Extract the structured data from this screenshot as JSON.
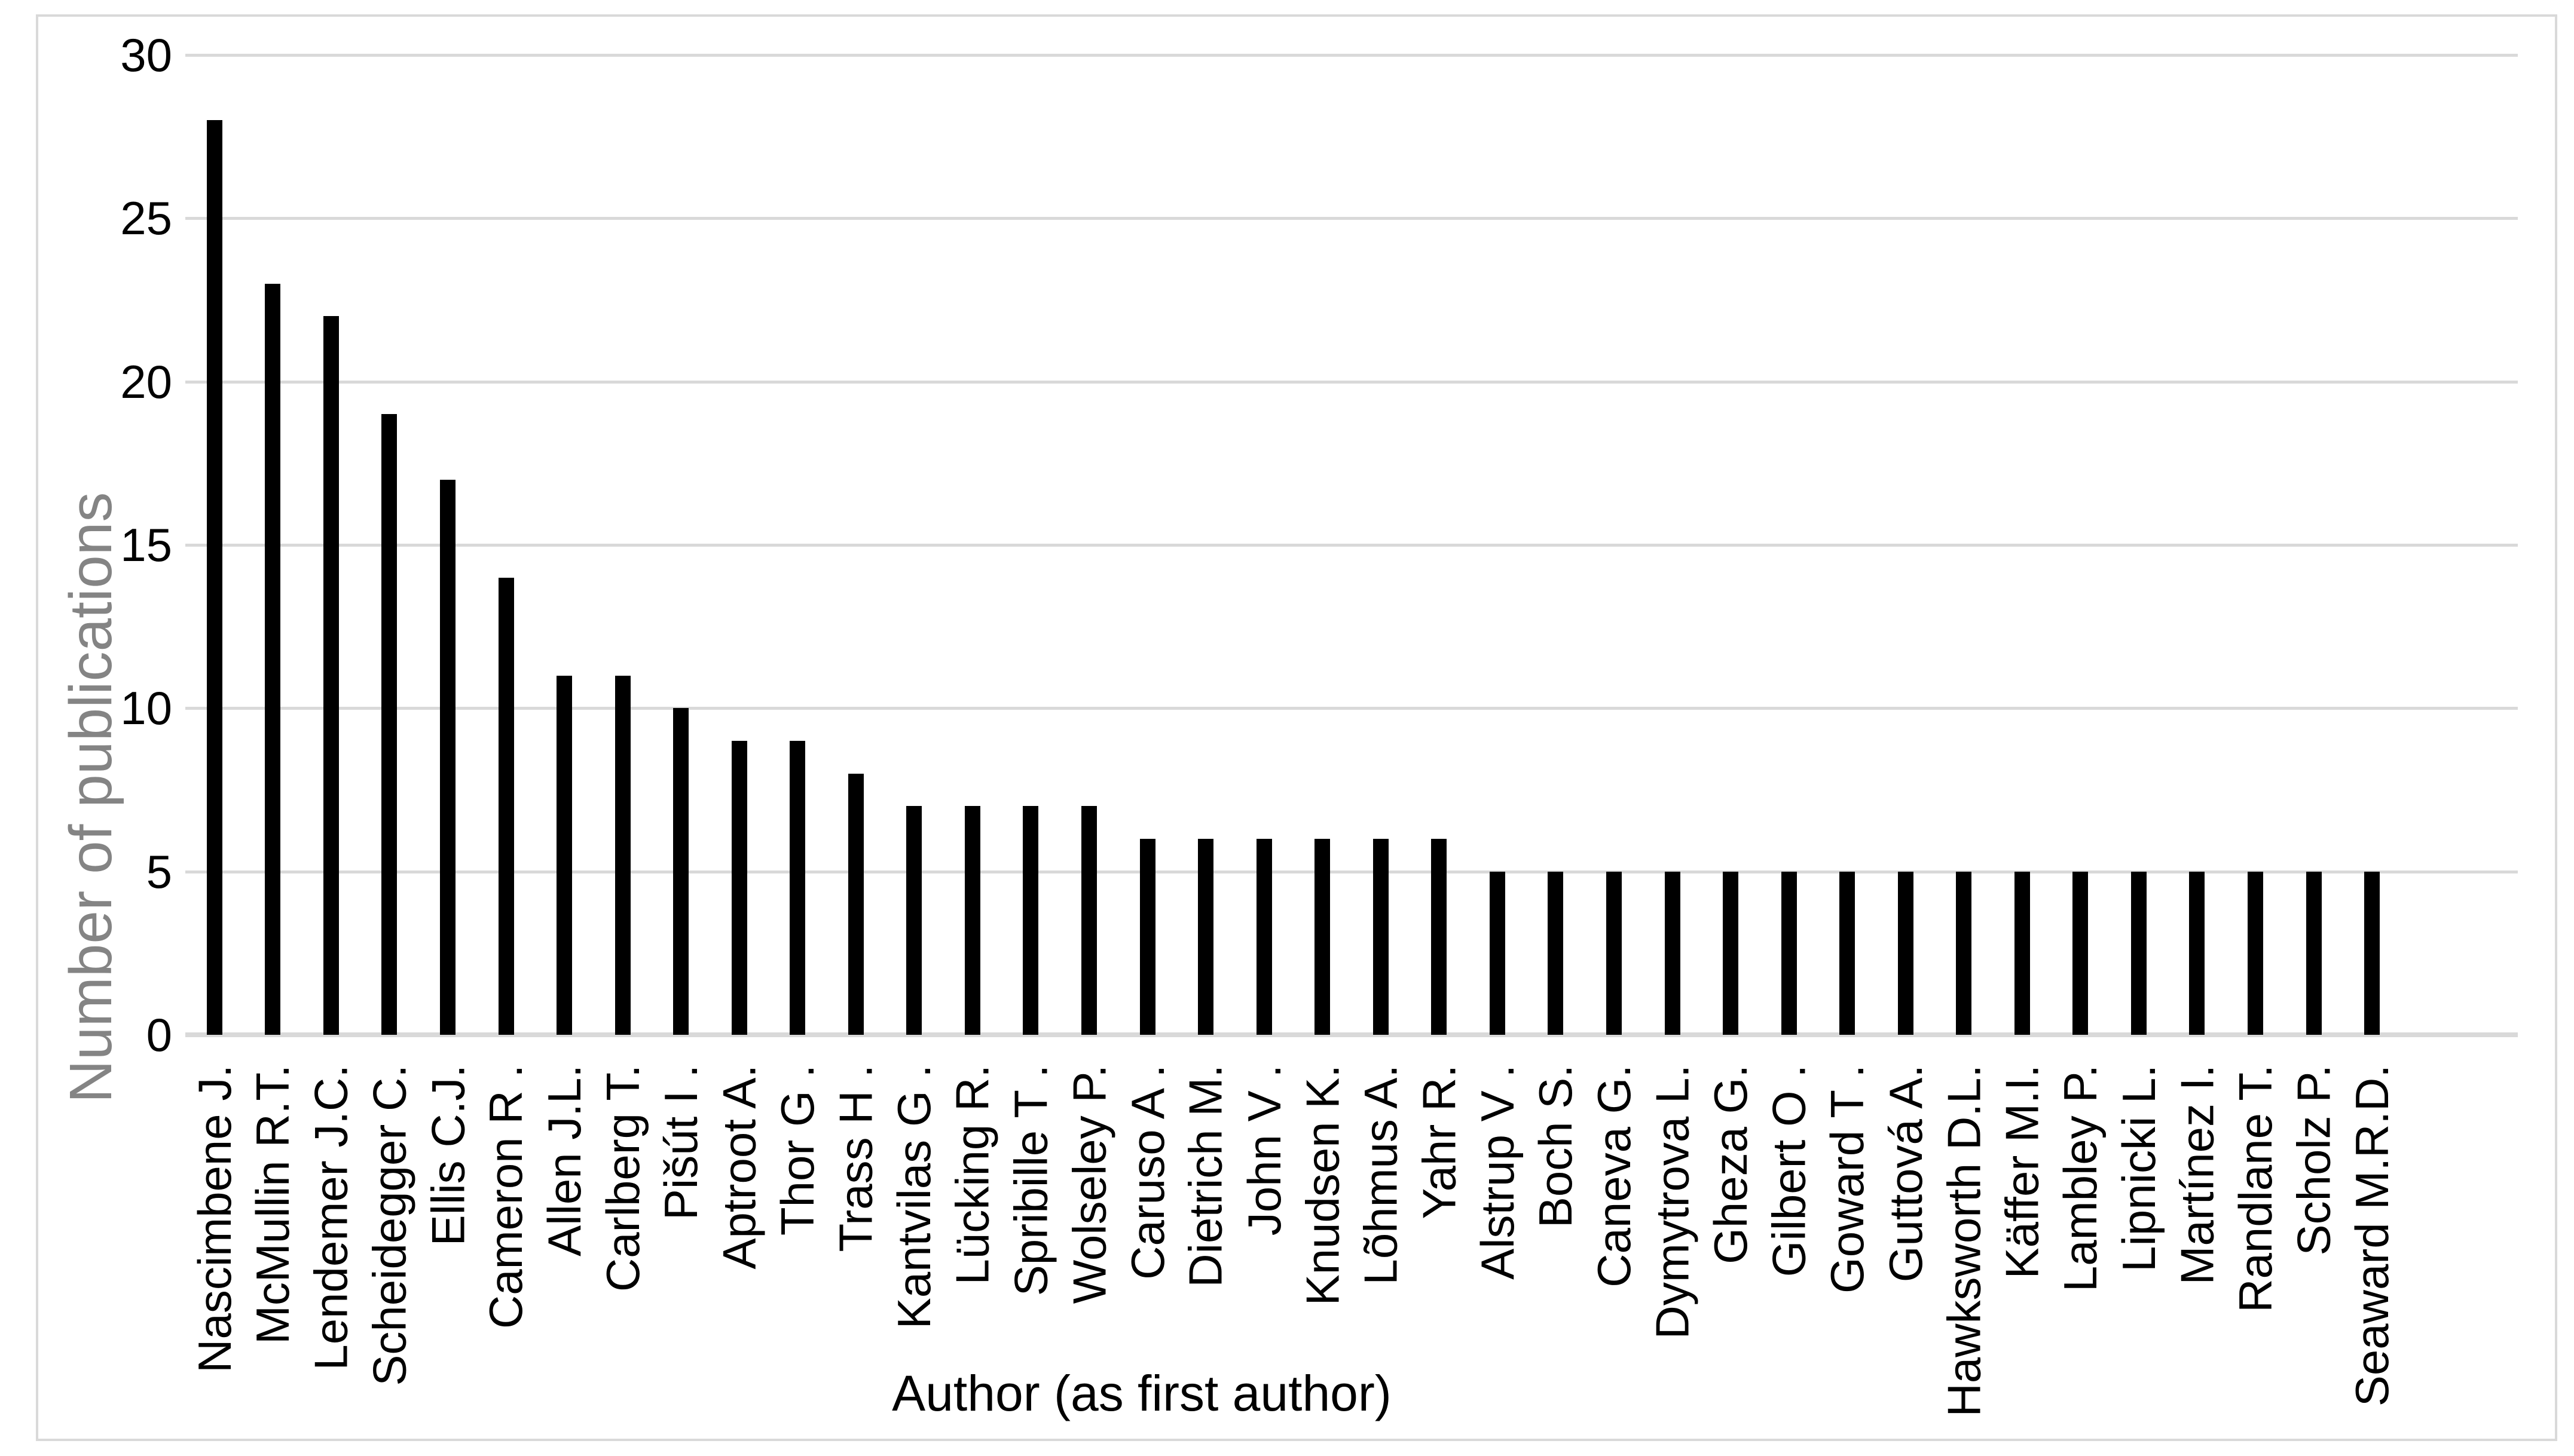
{
  "chart_data": {
    "type": "bar",
    "title": "",
    "xlabel": "Author (as first author)",
    "ylabel": "Number of publications",
    "categories": [
      "Nascimbene J.",
      "McMullin R.T.",
      "Lendemer J.C.",
      "Scheidegger C.",
      "Ellis C.J.",
      "Cameron R .",
      "Allen J.L.",
      "Carlberg T.",
      "Pišút I .",
      "Aptroot A.",
      "Thor G .",
      "Trass H .",
      "Kantvilas G .",
      "Lücking R.",
      "Spribille T .",
      "Wolseley P.",
      "Caruso A .",
      "Dietrich M.",
      "John V .",
      "Knudsen K.",
      "Lõhmus A.",
      "Yahr R.",
      "Alstrup V .",
      "Boch S.",
      "Caneva G.",
      "Dymytrova L.",
      "Gheza G.",
      "Gilbert O .",
      "Goward T .",
      "Guttová A.",
      "Hawksworth D.L.",
      "Käffer M.I.",
      "Lambley P.",
      "Lipnicki L.",
      "Martínez I.",
      "Randlane T.",
      "Scholz P.",
      "Seaward M.R.D."
    ],
    "values": [
      28,
      23,
      22,
      19,
      17,
      14,
      11,
      11,
      10,
      9,
      9,
      8,
      7,
      7,
      7,
      7,
      6,
      6,
      6,
      6,
      6,
      6,
      5,
      5,
      5,
      5,
      5,
      5,
      5,
      5,
      5,
      5,
      5,
      5,
      5,
      5,
      5,
      5
    ],
    "ylim": [
      0,
      30
    ],
    "ytick_labels": [
      "0",
      "5",
      "10",
      "15",
      "20",
      "25",
      "30"
    ],
    "ytick_interval": 5,
    "grid": "horizontal",
    "legend": "none",
    "empty_trailing_slots": 2,
    "bar_color": "#000000",
    "gridline_color": "#d9d9d9",
    "frame_color": "#d9d9d9",
    "y_title_color": "#848484",
    "text_color": "#000000"
  }
}
